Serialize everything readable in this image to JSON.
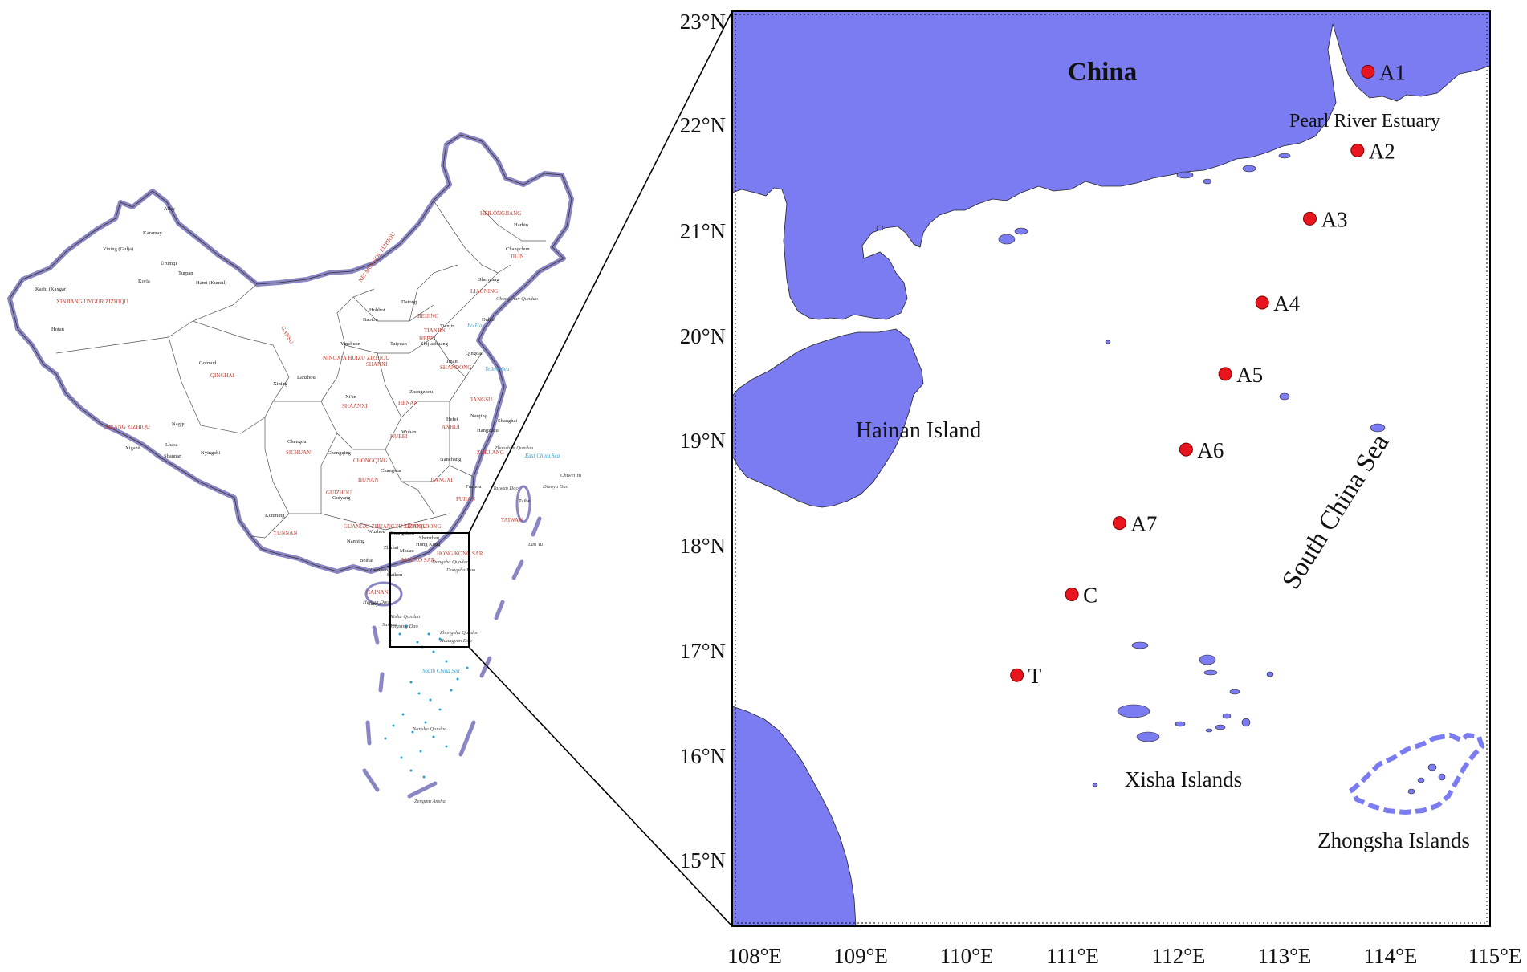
{
  "colors": {
    "land": "#7b7bf2",
    "sea": "#ffffff",
    "border": "#000000",
    "station": "#e8141e",
    "overview_outline": "#8a86c4",
    "overview_region_text": "#c0392b",
    "overview_water_text": "#2a9fd6",
    "overview_city_text": "#222222"
  },
  "map": {
    "lat_labels": [
      "23°N",
      "22°N",
      "21°N",
      "20°N",
      "19°N",
      "18°N",
      "17°N",
      "16°N",
      "15°N"
    ],
    "lon_labels": [
      "108°E",
      "109°E",
      "110°E",
      "111°E",
      "112°E",
      "113°E",
      "114°E",
      "115°E"
    ],
    "place_labels": {
      "china": "China",
      "hainan": "Hainan Island",
      "sea": "South China Sea",
      "estuary": "Pearl River Estuary",
      "xisha": "Xisha Islands",
      "zhongsha": "Zhongsha Islands"
    },
    "stations": [
      {
        "id": "A1",
        "lon": 113.8,
        "lat": 22.5
      },
      {
        "id": "A2",
        "lon": 113.7,
        "lat": 21.75
      },
      {
        "id": "A3",
        "lon": 113.25,
        "lat": 21.1
      },
      {
        "id": "A4",
        "lon": 112.8,
        "lat": 20.3
      },
      {
        "id": "A5",
        "lon": 112.45,
        "lat": 19.62
      },
      {
        "id": "A6",
        "lon": 112.08,
        "lat": 18.9
      },
      {
        "id": "A7",
        "lon": 111.45,
        "lat": 18.2
      },
      {
        "id": "C",
        "lon": 111.0,
        "lat": 17.52
      },
      {
        "id": "T",
        "lon": 110.48,
        "lat": 16.75
      }
    ]
  },
  "overview": {
    "regions": [
      "XINJIANG UYGUR ZIZHIQU",
      "XIZANG ZIZHIQU",
      "QINGHAI",
      "GANSU",
      "NEI MONGOL ZIZHIQU",
      "HEILONGJIANG",
      "JILIN",
      "LIAONING",
      "SHANXI",
      "SHAANXI",
      "HENAN",
      "HUBEI",
      "HUNAN",
      "SICHUAN",
      "CHONGQING",
      "GUIZHOU",
      "YUNNAN",
      "GUANGXI ZHUANGZU ZIZHIQU",
      "GUANGDONG",
      "FUJIAN",
      "JIANGXI",
      "ANHUI",
      "JIANGSU",
      "ZHEJIANG",
      "SHANDONG",
      "HEBEI",
      "HAINAN",
      "TAIWAN",
      "MACAO SAR",
      "HONG KONG SAR",
      "NINGXIA HUIZU ZIZHIQU",
      "BEIJING",
      "TIANJIN"
    ],
    "cities": [
      "Karamay",
      "Ürümqi",
      "Yining (Gulja)",
      "Kashi (Kaxgar)",
      "Hotan",
      "Korla",
      "Turpan",
      "Hami (Kumul)",
      "Altay",
      "Golmud",
      "Xining",
      "Lanzhou",
      "Lhasa",
      "Nagqu",
      "Xigazê",
      "Nyingchi",
      "Shannan",
      "Chengdu",
      "Chongqing",
      "Kunming",
      "Guiyang",
      "Nanning",
      "Guangzhou",
      "Hong Kong",
      "Macau",
      "Haikou",
      "Sanya",
      "Changsha",
      "Wuhan",
      "Nanchang",
      "Fuzhou",
      "Taibei",
      "Hangzhou",
      "Shanghai",
      "Nanjing",
      "Hefei",
      "Zhengzhou",
      "Xi'an",
      "Taiyuan",
      "Shijiazhuang",
      "Jinan",
      "Tianjin",
      "Shenyang",
      "Changchun",
      "Harbin",
      "Hohhot",
      "Yinchuan",
      "Dalian",
      "Qingdao",
      "Baotou",
      "Wuzhou",
      "Zhuhai",
      "Shenzhen",
      "Beihai",
      "Zhanjiang",
      "Datong"
    ],
    "water": [
      "Yellow Sea",
      "East China Sea",
      "South China Sea",
      "Bo Hai",
      "Hainan Dao",
      "Xisha Qundao",
      "Zhongsha Qundao",
      "Nansha Qundao",
      "Dongsha Qundao",
      "Diaoyu Dao",
      "Chiwei Yu",
      "Zengmu Ansha",
      "Sansha",
      "Taiwan Dao",
      "Huangyan Dao",
      "Dongsha Dao",
      "Lan Yu",
      "Changshan Qundao",
      "Zhoushan Qundao",
      "Yongxing Dao"
    ]
  }
}
